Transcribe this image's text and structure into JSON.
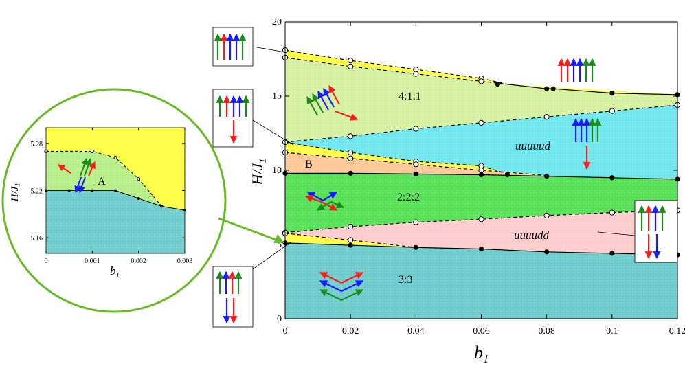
{
  "colors": {
    "red": "#ff1a1a",
    "green": "#1a8c1a",
    "blue": "#1a1aff",
    "yellow": "#ffff44",
    "lightgreen": "#d4f0a0",
    "cyan": "#6ee6ee",
    "orange": "#ffc896",
    "green2": "#55e055",
    "pink": "#ffcccc",
    "teal": "#6ecccc",
    "circle": "#66bb22"
  },
  "chart_data": [
    {
      "type": "phase-diagram",
      "name": "main",
      "xlabel_main": "b",
      "xlabel_sub": "1",
      "ylabel_main": "H/J",
      "ylabel_sub": "1",
      "xlim": [
        0,
        0.12
      ],
      "ylim": [
        0,
        20
      ],
      "xticks": [
        "0",
        "0.02",
        "0.04",
        "0.06",
        "0.08",
        "0.1",
        "0.12"
      ],
      "xtick_values": [
        0,
        0.02,
        0.04,
        0.06,
        0.08,
        0.1,
        0.12
      ],
      "yticks": [
        "0",
        "5",
        "10",
        "15",
        "20"
      ],
      "ytick_values": [
        0,
        5,
        10,
        15,
        20
      ],
      "region_labels": [
        "4:1:1",
        "uuuuud",
        "2:2:2",
        "uuuudd",
        "3:3",
        "B"
      ],
      "boundaries": {
        "saturation_upper_dashed": {
          "x": [
            0,
            0.02,
            0.04,
            0.06,
            0.068
          ],
          "y": [
            18.1,
            17.4,
            16.8,
            16.2,
            15.8
          ]
        },
        "saturation_lower_dashed": {
          "x": [
            0,
            0.02,
            0.04,
            0.06,
            0.068
          ],
          "y": [
            17.6,
            17.0,
            16.5,
            16.0,
            15.8
          ]
        },
        "saturation_solid": {
          "x": [
            0.068,
            0.08,
            0.082,
            0.1,
            0.12
          ],
          "y": [
            15.8,
            15.5,
            15.5,
            15.2,
            15.1
          ]
        },
        "b1_upper_dashed": {
          "x": [
            0,
            0.02,
            0.04,
            0.06,
            0.08
          ],
          "y": [
            11.2,
            10.8,
            10.4,
            10.0,
            9.65
          ]
        },
        "b1_lower_dashed": {
          "x": [
            0,
            0.02,
            0.04,
            0.06,
            0.068
          ],
          "y": [
            11.9,
            11.2,
            10.6,
            10.3,
            9.75
          ]
        },
        "upper_cone_dashed": {
          "x": [
            0,
            0.02,
            0.04,
            0.06,
            0.08,
            0.1,
            0.12
          ],
          "y": [
            11.9,
            12.3,
            12.8,
            13.2,
            13.6,
            14.0,
            14.4
          ]
        },
        "middle_solid": {
          "x": [
            0,
            0.02,
            0.04,
            0.06,
            0.08,
            0.1,
            0.12
          ],
          "y": [
            9.8,
            9.8,
            9.75,
            9.7,
            9.6,
            9.5,
            9.4
          ]
        },
        "lower_cone_dashed": {
          "x": [
            0,
            0.02,
            0.04,
            0.06,
            0.08,
            0.1,
            0.12
          ],
          "y": [
            5.8,
            6.2,
            6.5,
            6.7,
            6.95,
            7.15,
            7.3
          ]
        },
        "a_upper_dashed": {
          "x": [
            0,
            0.02,
            0.04
          ],
          "y": [
            5.75,
            5.3,
            4.8
          ]
        },
        "bottom_solid": {
          "x": [
            0,
            0.02,
            0.04,
            0.06,
            0.08,
            0.1,
            0.12
          ],
          "y": [
            5.1,
            4.95,
            4.8,
            4.7,
            4.5,
            4.4,
            4.3
          ]
        }
      },
      "markers_filled": [
        [
          0.065,
          15.8
        ],
        [
          0.08,
          15.5
        ],
        [
          0.082,
          15.5
        ],
        [
          0.1,
          15.2
        ],
        [
          0.12,
          15.1
        ],
        [
          0,
          9.8
        ],
        [
          0.02,
          9.8
        ],
        [
          0.04,
          9.75
        ],
        [
          0.06,
          9.7
        ],
        [
          0.068,
          9.7
        ],
        [
          0.08,
          9.6
        ],
        [
          0.1,
          9.5
        ],
        [
          0.12,
          9.4
        ],
        [
          0,
          5.1
        ],
        [
          0.02,
          4.95
        ],
        [
          0.04,
          4.8
        ],
        [
          0.06,
          4.7
        ],
        [
          0.08,
          4.5
        ],
        [
          0.1,
          4.4
        ],
        [
          0.12,
          4.3
        ]
      ],
      "markers_open": [
        [
          0,
          18.1
        ],
        [
          0.02,
          17.4
        ],
        [
          0.04,
          16.8
        ],
        [
          0.06,
          16.2
        ],
        [
          0,
          17.6
        ],
        [
          0.02,
          17.0
        ],
        [
          0.04,
          16.5
        ],
        [
          0.06,
          16.0
        ],
        [
          0,
          11.9
        ],
        [
          0.02,
          11.2
        ],
        [
          0.04,
          10.6
        ],
        [
          0.06,
          10.3
        ],
        [
          0,
          11.2
        ],
        [
          0.02,
          10.8
        ],
        [
          0.04,
          10.4
        ],
        [
          0.06,
          10.0
        ],
        [
          0.02,
          12.3
        ],
        [
          0.04,
          12.8
        ],
        [
          0.06,
          13.2
        ],
        [
          0.08,
          13.6
        ],
        [
          0.1,
          14.0
        ],
        [
          0.12,
          14.4
        ],
        [
          0,
          5.8
        ],
        [
          0.02,
          6.2
        ],
        [
          0.04,
          6.5
        ],
        [
          0.06,
          6.7
        ],
        [
          0.08,
          6.95
        ],
        [
          0.1,
          7.15
        ],
        [
          0.12,
          7.3
        ],
        [
          0,
          5.75
        ],
        [
          0.02,
          5.3
        ]
      ]
    },
    {
      "type": "phase-diagram",
      "name": "inset",
      "xlabel_main": "b",
      "xlabel_sub": "1",
      "ylabel_main": "H/J",
      "ylabel_sub": "1",
      "xlim": [
        0,
        0.003
      ],
      "ylim": [
        5.14,
        5.3
      ],
      "xticks": [
        "0",
        "0.001",
        "0.002",
        "0.003"
      ],
      "xtick_values": [
        0,
        0.001,
        0.002,
        0.003
      ],
      "yticks": [
        "5.16",
        "5.22",
        "5.28"
      ],
      "ytick_values": [
        5.16,
        5.22,
        5.28
      ],
      "region_labels": [
        "A"
      ],
      "boundaries": {
        "top_dashed": {
          "x": [
            0,
            0.001,
            0.0015,
            0.002,
            0.0025
          ],
          "y": [
            5.27,
            5.27,
            5.262,
            5.235,
            5.2
          ]
        },
        "bottom_solid": {
          "x": [
            0,
            0.0005,
            0.001,
            0.0015,
            0.002,
            0.0025,
            0.003
          ],
          "y": [
            5.22,
            5.22,
            5.22,
            5.22,
            5.21,
            5.2,
            5.195
          ]
        }
      },
      "markers_filled": [
        [
          0,
          5.22
        ],
        [
          0.0005,
          5.22
        ],
        [
          0.001,
          5.22
        ],
        [
          0.0015,
          5.22
        ],
        [
          0.002,
          5.21
        ],
        [
          0.0025,
          5.2
        ],
        [
          0.003,
          5.195
        ]
      ],
      "markers_open": [
        [
          0,
          5.27
        ],
        [
          0.001,
          5.27
        ],
        [
          0.0015,
          5.262
        ],
        [
          0.002,
          5.235
        ]
      ]
    }
  ]
}
